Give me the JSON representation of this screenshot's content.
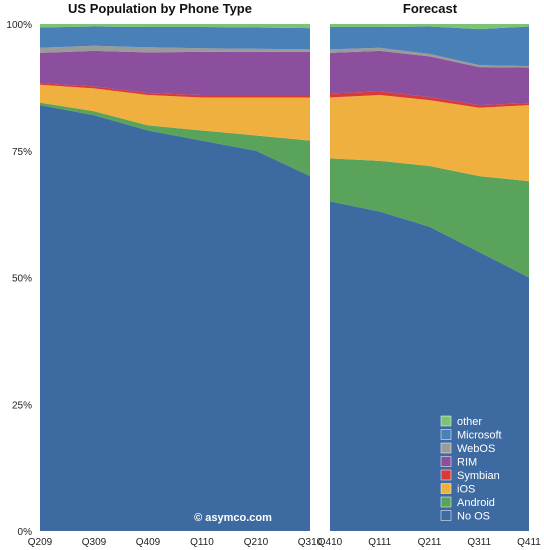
{
  "colors": {
    "No OS": "#3d6aa0",
    "Android": "#5aa35a",
    "iOS": "#f0b040",
    "Symbian": "#d83a3a",
    "RIM": "#8c4f9e",
    "WebOS": "#9a9a9a",
    "Microsoft": "#4a80b8",
    "other": "#7cc474"
  },
  "watermark": "© asymco.com",
  "legend": [
    "other",
    "Microsoft",
    "WebOS",
    "RIM",
    "Symbian",
    "iOS",
    "Android",
    "No OS"
  ],
  "chart_data": [
    {
      "type": "area",
      "stacked": true,
      "title": "US Population by Phone Type",
      "categories": [
        "Q209",
        "Q309",
        "Q409",
        "Q110",
        "Q210",
        "Q310"
      ],
      "y_ticks": [
        "0%",
        "25%",
        "50%",
        "75%",
        "100%"
      ],
      "ylim": [
        0,
        100
      ],
      "series": [
        {
          "name": "No OS",
          "values": [
            84,
            82,
            79,
            77,
            75,
            70
          ]
        },
        {
          "name": "Android",
          "values": [
            0.5,
            0.8,
            1,
            2,
            3,
            7
          ]
        },
        {
          "name": "iOS",
          "values": [
            3.5,
            4.5,
            6,
            6.5,
            7.5,
            8.5
          ]
        },
        {
          "name": "Symbian",
          "values": [
            0.3,
            0.4,
            0.4,
            0.5,
            0.5,
            0.5
          ]
        },
        {
          "name": "RIM",
          "values": [
            6,
            7,
            8,
            8.5,
            8.5,
            8.5
          ]
        },
        {
          "name": "WebOS",
          "values": [
            1,
            1,
            1,
            0.7,
            0.6,
            0.5
          ]
        },
        {
          "name": "Microsoft",
          "values": [
            4,
            3.8,
            4,
            4.2,
            4.2,
            4.2
          ]
        },
        {
          "name": "other",
          "values": [
            0.7,
            0.5,
            0.6,
            0.6,
            0.7,
            0.8
          ]
        }
      ]
    },
    {
      "type": "area",
      "stacked": true,
      "title": "Forecast",
      "categories": [
        "Q410",
        "Q111",
        "Q211",
        "Q311",
        "Q411"
      ],
      "ylim": [
        0,
        100
      ],
      "series": [
        {
          "name": "No OS",
          "values": [
            65,
            63,
            60,
            55,
            50
          ]
        },
        {
          "name": "Android",
          "values": [
            8.5,
            10,
            12,
            15,
            19
          ]
        },
        {
          "name": "iOS",
          "values": [
            12,
            13,
            13,
            13.5,
            15
          ]
        },
        {
          "name": "Symbian",
          "values": [
            0.8,
            0.7,
            0.6,
            0.5,
            0.4
          ]
        },
        {
          "name": "RIM",
          "values": [
            8,
            8,
            8,
            7.5,
            7
          ]
        },
        {
          "name": "WebOS",
          "values": [
            0.7,
            0.6,
            0.5,
            0.4,
            0.3
          ]
        },
        {
          "name": "Microsoft",
          "values": [
            4.4,
            4.1,
            5.4,
            7.1,
            7.8
          ]
        },
        {
          "name": "other",
          "values": [
            0.6,
            0.6,
            0.5,
            1,
            0.5
          ]
        }
      ]
    }
  ]
}
